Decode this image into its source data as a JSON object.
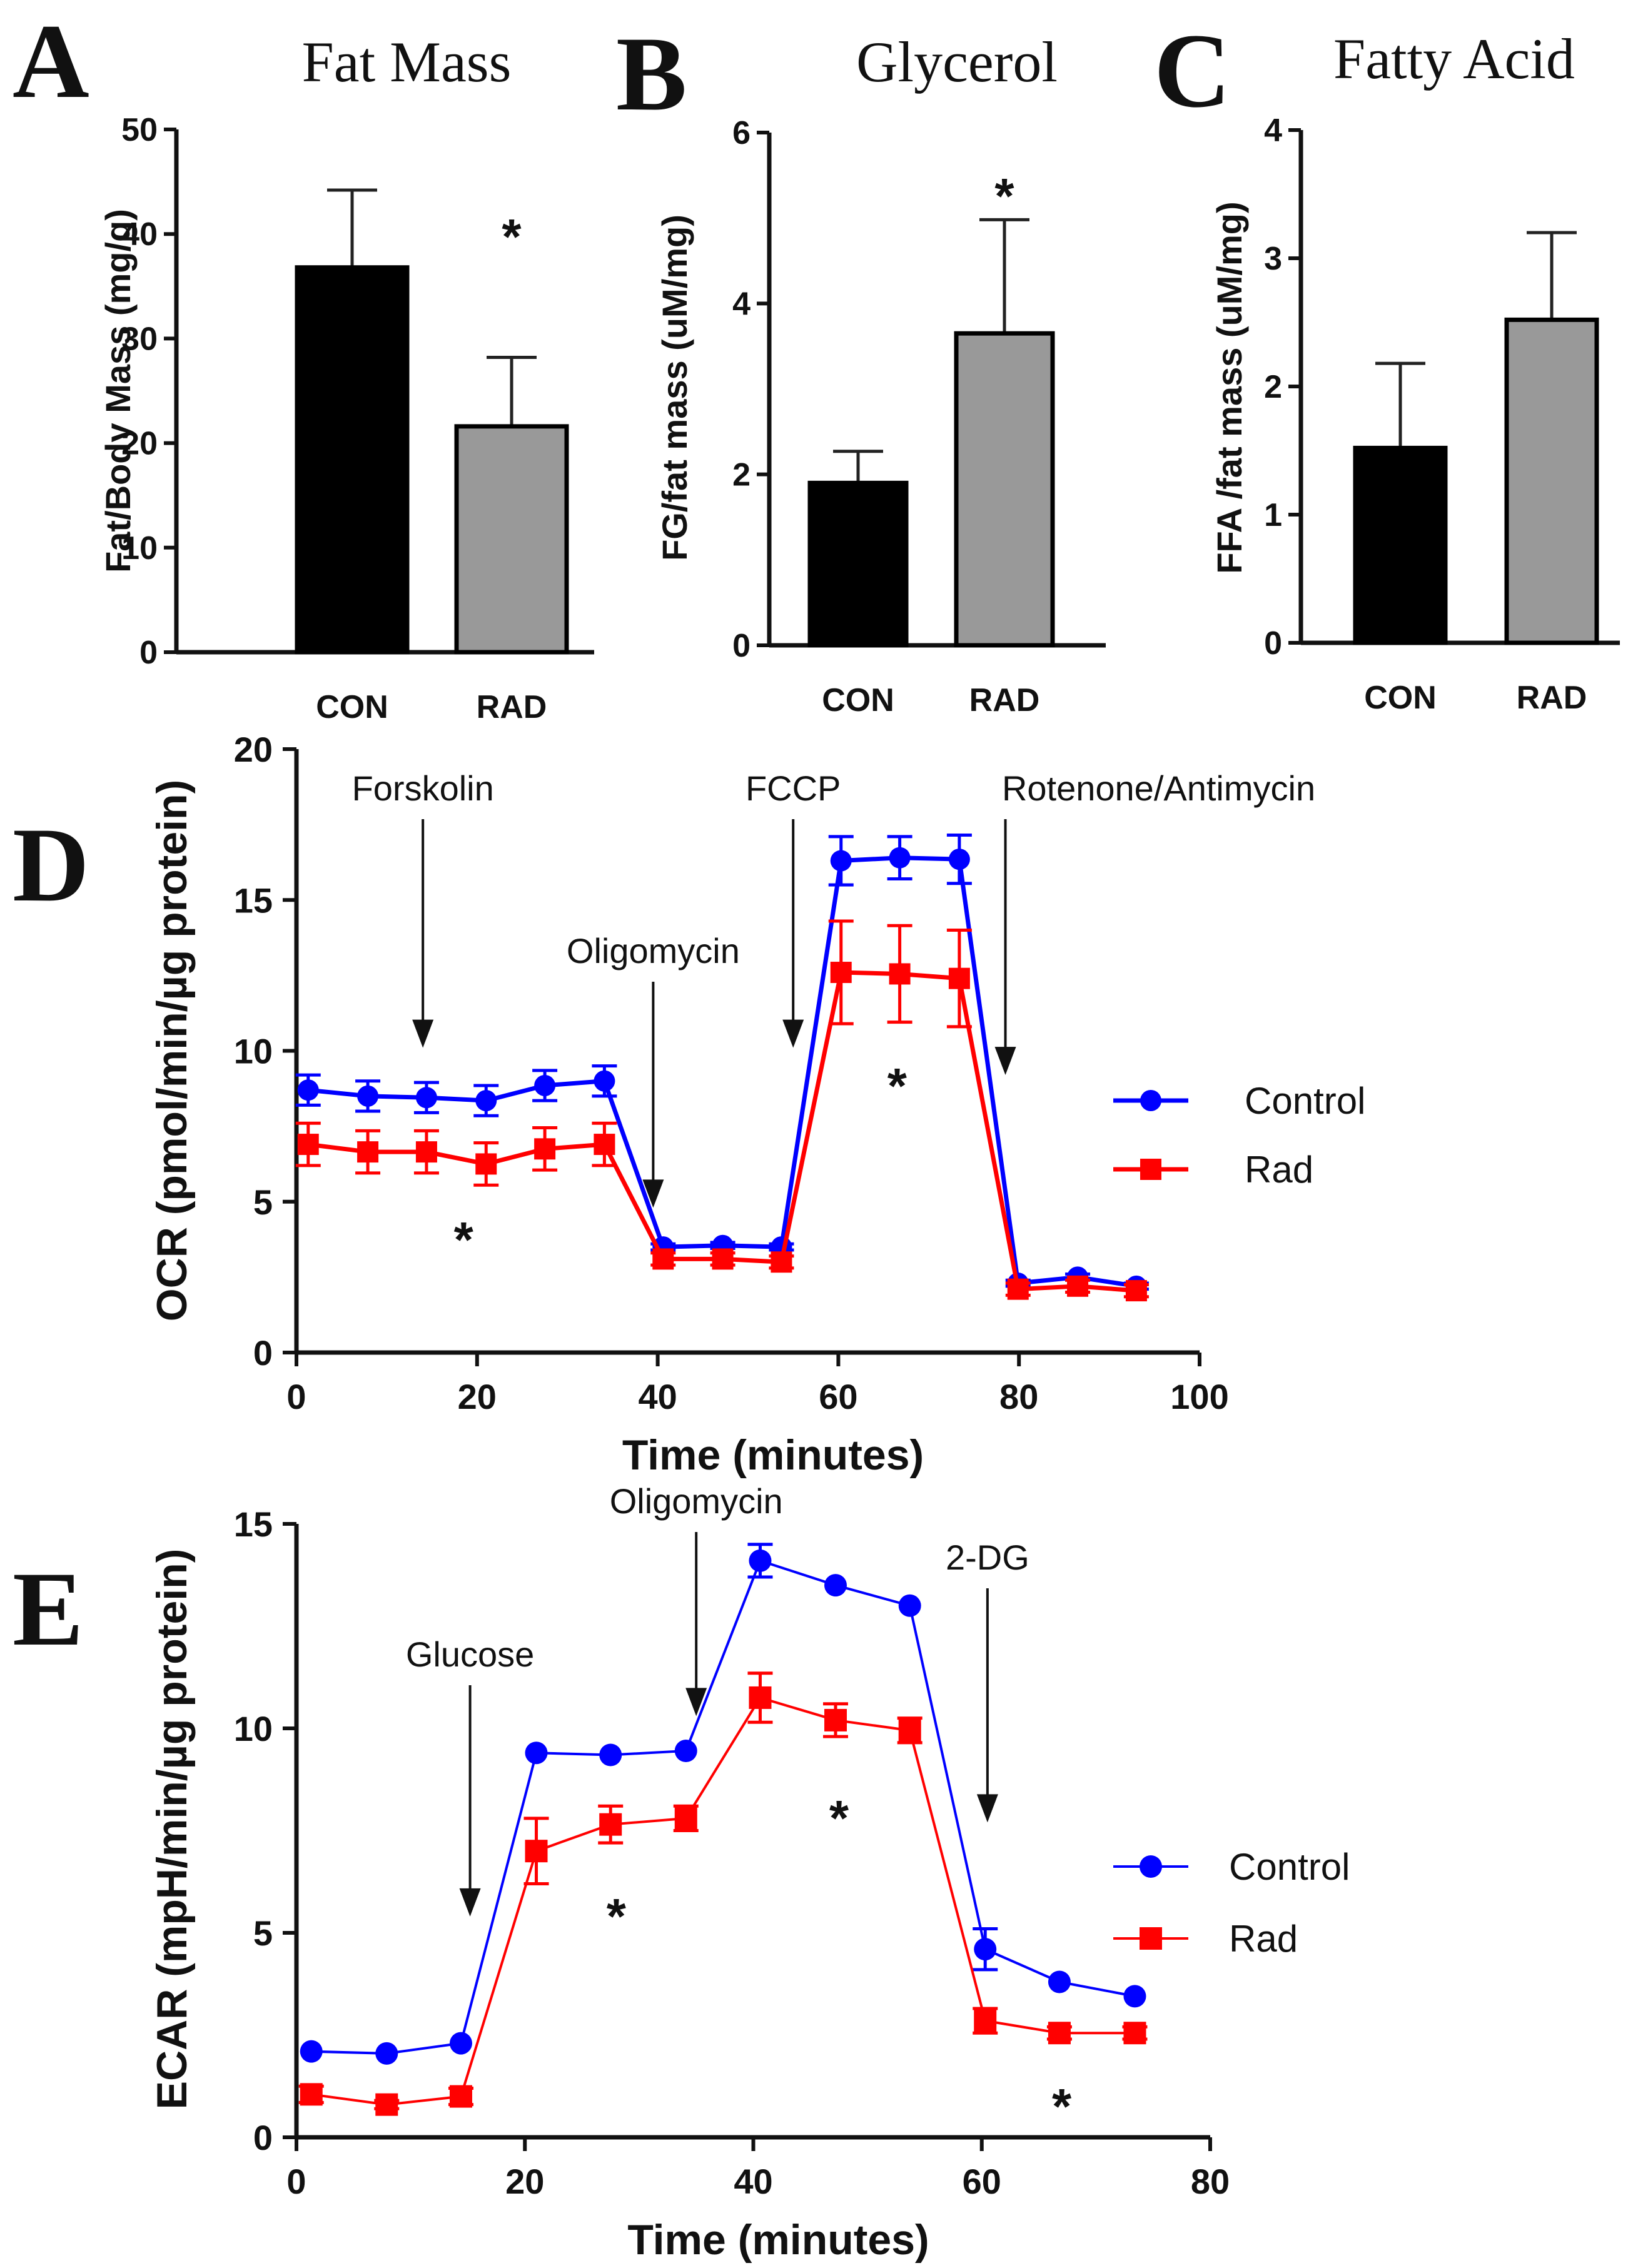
{
  "colors": {
    "con_bar": "#000000",
    "rad_bar": "#999999",
    "control": "#0000ff",
    "rad": "#ff0000"
  },
  "chart_data": [
    {
      "id": "A",
      "type": "bar",
      "letter": "A",
      "title": "Fat Mass",
      "ylabel": "Fat/Body Mass (mg/g)",
      "ylim": [
        0,
        50
      ],
      "yticks": [
        0,
        10,
        20,
        30,
        40,
        50
      ],
      "categories": [
        "CON",
        "RAD"
      ],
      "values": [
        36.8,
        21.6
      ],
      "errors": [
        7.4,
        6.6
      ],
      "annotations": [
        {
          "text": "*",
          "category": "RAD",
          "y": 40.5
        }
      ]
    },
    {
      "id": "B",
      "type": "bar",
      "letter": "B",
      "title": "Glycerol",
      "ylabel": "FG/fat mass (uM/mg)",
      "ylim": [
        0,
        6
      ],
      "yticks": [
        0,
        2,
        4,
        6
      ],
      "categories": [
        "CON",
        "RAD"
      ],
      "values": [
        1.9,
        3.65
      ],
      "errors": [
        0.37,
        1.33
      ],
      "annotations": [
        {
          "text": "*",
          "category": "RAD",
          "y": 5.35
        }
      ]
    },
    {
      "id": "C",
      "type": "bar",
      "letter": "C",
      "title": "Fatty Acid",
      "ylabel": "FFA /fat mass (uM/mg)",
      "ylim": [
        0,
        4
      ],
      "yticks": [
        0,
        1,
        2,
        3,
        4
      ],
      "categories": [
        "CON",
        "RAD"
      ],
      "values": [
        1.52,
        2.52
      ],
      "errors": [
        0.66,
        0.68
      ],
      "annotations": []
    },
    {
      "id": "D",
      "type": "line",
      "letter": "D",
      "xlabel": "Time (minutes)",
      "ylabel": "OCR (pmol/min/µg protein)",
      "xlim": [
        0,
        100
      ],
      "ylim": [
        0,
        20
      ],
      "xticks": [
        0,
        20,
        40,
        60,
        80,
        100
      ],
      "yticks": [
        0,
        5,
        10,
        15,
        20
      ],
      "series": [
        {
          "name": "Control",
          "color": "#0000ff",
          "marker": "circle",
          "x": [
            1.3,
            7.9,
            14.4,
            21,
            27.5,
            34.1,
            40.6,
            47.2,
            53.7,
            60.3,
            66.8,
            73.4,
            79.9,
            86.5,
            93
          ],
          "y": [
            8.7,
            8.5,
            8.45,
            8.35,
            8.85,
            9.0,
            3.5,
            3.55,
            3.5,
            16.3,
            16.4,
            16.35,
            2.3,
            2.5,
            2.2
          ],
          "err": [
            0.5,
            0.5,
            0.5,
            0.5,
            0.5,
            0.5,
            0.1,
            0.1,
            0.1,
            0.8,
            0.7,
            0.8,
            0.1,
            0.1,
            0.1
          ]
        },
        {
          "name": "Rad",
          "color": "#ff0000",
          "marker": "square",
          "x": [
            1.3,
            7.9,
            14.4,
            21,
            27.5,
            34.1,
            40.6,
            47.2,
            53.7,
            60.3,
            66.8,
            73.4,
            79.9,
            86.5,
            93
          ],
          "y": [
            6.9,
            6.65,
            6.65,
            6.25,
            6.75,
            6.9,
            3.1,
            3.1,
            3.0,
            12.6,
            12.55,
            12.4,
            2.1,
            2.2,
            2.05
          ],
          "err": [
            0.7,
            0.7,
            0.7,
            0.7,
            0.7,
            0.7,
            0.2,
            0.2,
            0.2,
            1.7,
            1.6,
            1.6,
            0.2,
            0.2,
            0.2
          ]
        }
      ],
      "injections": [
        {
          "label": "Forskolin",
          "x": 14,
          "y_tip": 10.1
        },
        {
          "label": "Oligomycin",
          "x": 39.5,
          "y_tip": 4.8
        },
        {
          "label": "FCCP",
          "x": 55,
          "y_tip": 10.1
        },
        {
          "label": "Rotenone/Antimycin",
          "x": 78.5,
          "y_tip": 9.2
        }
      ],
      "annotations": [
        {
          "text": "*",
          "x": 18.5,
          "y": 4.0
        },
        {
          "text": "*",
          "x": 66.5,
          "y": 9.1
        }
      ],
      "legend": "right"
    },
    {
      "id": "E",
      "type": "line",
      "letter": "E",
      "xlabel": "Time (minutes)",
      "ylabel": "ECAR (mpH/min/µg protein)",
      "xlim": [
        0,
        80
      ],
      "ylim": [
        0,
        15
      ],
      "xticks": [
        0,
        20,
        40,
        60,
        80
      ],
      "yticks": [
        0,
        5,
        10,
        15
      ],
      "series": [
        {
          "name": "Control",
          "color": "#0000ff",
          "marker": "circle",
          "x": [
            1.3,
            7.9,
            14.4,
            21,
            27.5,
            34.1,
            40.6,
            47.2,
            53.7,
            60.3,
            66.8,
            73.4
          ],
          "y": [
            2.1,
            2.05,
            2.3,
            9.4,
            9.35,
            9.45,
            14.1,
            13.5,
            13.0,
            4.6,
            3.8,
            3.45
          ],
          "err": [
            0,
            0,
            0,
            0,
            0,
            0,
            0.4,
            0,
            0,
            0.5,
            0,
            0
          ]
        },
        {
          "name": "Rad",
          "color": "#ff0000",
          "marker": "square",
          "x": [
            1.3,
            7.9,
            14.4,
            21,
            27.5,
            34.1,
            40.6,
            47.2,
            53.7,
            60.3,
            66.8,
            73.4
          ],
          "y": [
            1.05,
            0.8,
            1.0,
            7.0,
            7.65,
            7.8,
            10.75,
            10.2,
            9.95,
            2.85,
            2.55,
            2.55
          ],
          "err": [
            0.2,
            0.1,
            0.2,
            0.8,
            0.45,
            0.3,
            0.6,
            0.4,
            0.3,
            0.3,
            0.15,
            0.15
          ]
        }
      ],
      "injections": [
        {
          "label": "Glucose",
          "x": 15.2,
          "y_tip": 5.4
        },
        {
          "label": "Oligomycin",
          "x": 35,
          "y_tip": 10.3
        },
        {
          "label": "2-DG",
          "x": 60.5,
          "y_tip": 7.7
        }
      ],
      "annotations": [
        {
          "text": "*",
          "x": 28,
          "y": 5.6
        },
        {
          "text": "*",
          "x": 47.5,
          "y": 8.0
        },
        {
          "text": "*",
          "x": 67,
          "y": 0.95
        }
      ],
      "legend": "right"
    }
  ]
}
